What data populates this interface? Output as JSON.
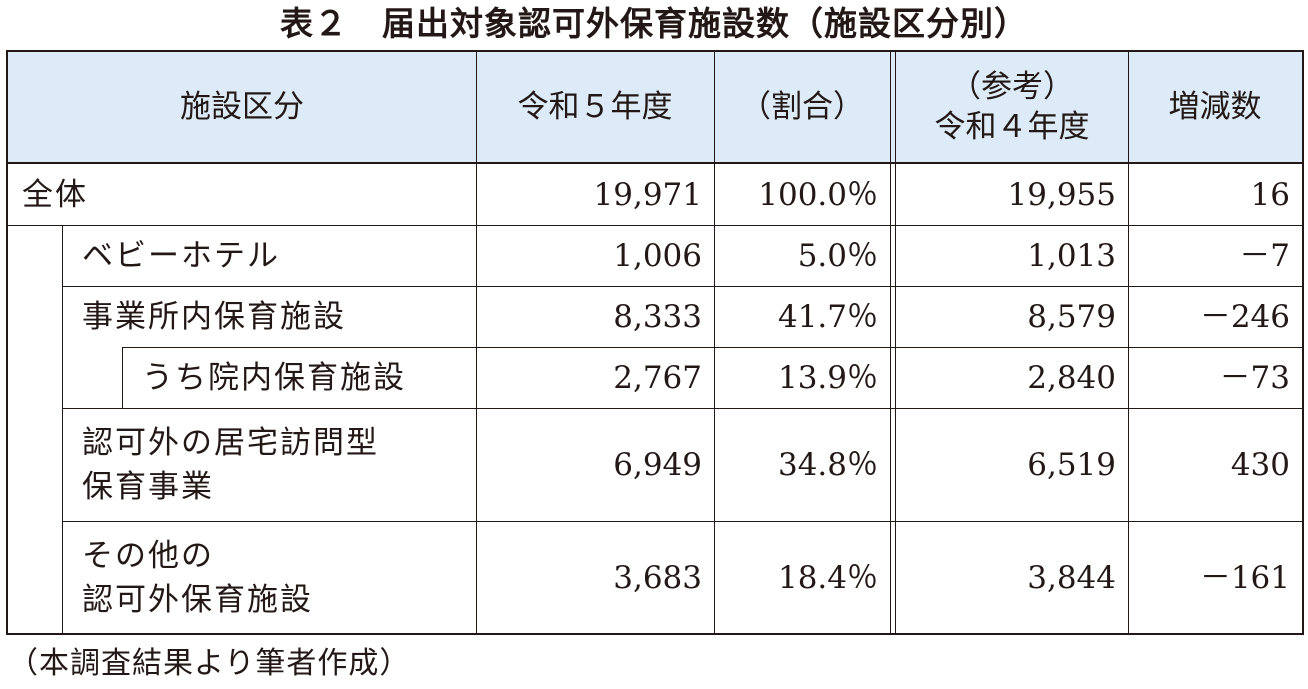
{
  "title": "表２　届出対象認可外保育施設数（施設区分別）",
  "columns": {
    "category": "施設区分",
    "r5": "令和５年度",
    "ratio": "（割合）",
    "r4_line1": "（参考）",
    "r4_line2": "令和４年度",
    "change": "増減数"
  },
  "rows": [
    {
      "label": "全体",
      "r5": "19,971",
      "ratio": "100.0％",
      "r4": "19,955",
      "change": "16"
    },
    {
      "label": "ベビーホテル",
      "r5": "1,006",
      "ratio": "5.0％",
      "r4": "1,013",
      "change": "－7"
    },
    {
      "label": "事業所内保育施設",
      "r5": "8,333",
      "ratio": "41.7％",
      "r4": "8,579",
      "change": "－246"
    },
    {
      "label": "うち院内保育施設",
      "r5": "2,767",
      "ratio": "13.9％",
      "r4": "2,840",
      "change": "－73"
    },
    {
      "label_line1": "認可外の居宅訪問型",
      "label_line2": "保育事業",
      "r5": "6,949",
      "ratio": "34.8％",
      "r4": "6,519",
      "change": "430"
    },
    {
      "label_line1": "その他の",
      "label_line2": "認可外保育施設",
      "r5": "3,683",
      "ratio": "18.4％",
      "r4": "3,844",
      "change": "－161"
    }
  ],
  "source": "（本調査結果より筆者作成）"
}
